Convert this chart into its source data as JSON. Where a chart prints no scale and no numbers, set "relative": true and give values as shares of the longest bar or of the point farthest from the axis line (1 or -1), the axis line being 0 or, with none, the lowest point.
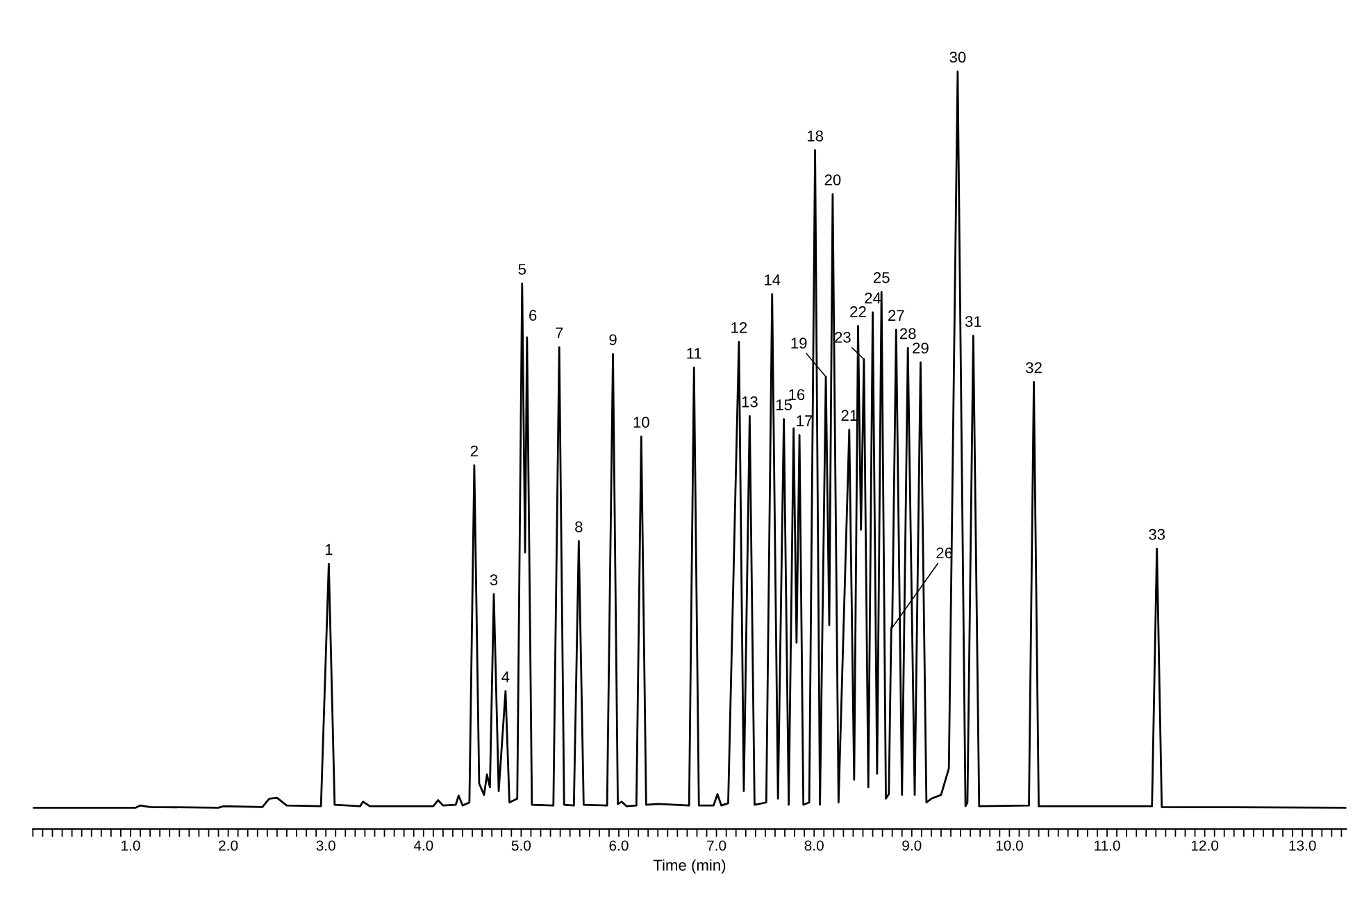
{
  "chart_data": {
    "type": "line",
    "relative": true,
    "xlabel": "Time (min)",
    "xlim": [
      0,
      13.45
    ],
    "xticks": [
      {
        "value": 0,
        "label": null
      },
      {
        "value": 0.1,
        "label": null
      },
      {
        "value": 0.2,
        "label": null
      },
      {
        "value": 0.3,
        "label": null
      },
      {
        "value": 0.4,
        "label": null
      },
      {
        "value": 0.5,
        "label": null
      },
      {
        "value": 0.6,
        "label": null
      },
      {
        "value": 0.7,
        "label": null
      },
      {
        "value": 0.8,
        "label": null
      },
      {
        "value": 0.9,
        "label": null
      },
      {
        "value": 1,
        "label": "1.0"
      },
      {
        "value": 1.1,
        "label": null
      },
      {
        "value": 1.2,
        "label": null
      },
      {
        "value": 1.3,
        "label": null
      },
      {
        "value": 1.4,
        "label": null
      },
      {
        "value": 1.5,
        "label": null
      },
      {
        "value": 1.6,
        "label": null
      },
      {
        "value": 1.7,
        "label": null
      },
      {
        "value": 1.8,
        "label": null
      },
      {
        "value": 1.9,
        "label": null
      },
      {
        "value": 2,
        "label": "2.0"
      },
      {
        "value": 2.1,
        "label": null
      },
      {
        "value": 2.2,
        "label": null
      },
      {
        "value": 2.3,
        "label": null
      },
      {
        "value": 2.4,
        "label": null
      },
      {
        "value": 2.5,
        "label": null
      },
      {
        "value": 2.6,
        "label": null
      },
      {
        "value": 2.7,
        "label": null
      },
      {
        "value": 2.8,
        "label": null
      },
      {
        "value": 2.9,
        "label": null
      },
      {
        "value": 3,
        "label": "3.0"
      },
      {
        "value": 3.1,
        "label": null
      },
      {
        "value": 3.2,
        "label": null
      },
      {
        "value": 3.3,
        "label": null
      },
      {
        "value": 3.4,
        "label": null
      },
      {
        "value": 3.5,
        "label": null
      },
      {
        "value": 3.6,
        "label": null
      },
      {
        "value": 3.7,
        "label": null
      },
      {
        "value": 3.8,
        "label": null
      },
      {
        "value": 3.9,
        "label": null
      },
      {
        "value": 4,
        "label": "4.0"
      },
      {
        "value": 4.1,
        "label": null
      },
      {
        "value": 4.2,
        "label": null
      },
      {
        "value": 4.3,
        "label": null
      },
      {
        "value": 4.4,
        "label": null
      },
      {
        "value": 4.5,
        "label": null
      },
      {
        "value": 4.6,
        "label": null
      },
      {
        "value": 4.7,
        "label": null
      },
      {
        "value": 4.8,
        "label": null
      },
      {
        "value": 4.9,
        "label": null
      },
      {
        "value": 5,
        "label": "5.0"
      },
      {
        "value": 5.1,
        "label": null
      },
      {
        "value": 5.2,
        "label": null
      },
      {
        "value": 5.3,
        "label": null
      },
      {
        "value": 5.4,
        "label": null
      },
      {
        "value": 5.5,
        "label": null
      },
      {
        "value": 5.6,
        "label": null
      },
      {
        "value": 5.7,
        "label": null
      },
      {
        "value": 5.8,
        "label": null
      },
      {
        "value": 5.9,
        "label": null
      },
      {
        "value": 6,
        "label": "6.0"
      },
      {
        "value": 6.1,
        "label": null
      },
      {
        "value": 6.2,
        "label": null
      },
      {
        "value": 6.3,
        "label": null
      },
      {
        "value": 6.4,
        "label": null
      },
      {
        "value": 6.5,
        "label": null
      },
      {
        "value": 6.6,
        "label": null
      },
      {
        "value": 6.7,
        "label": null
      },
      {
        "value": 6.8,
        "label": null
      },
      {
        "value": 6.9,
        "label": null
      },
      {
        "value": 7,
        "label": "7.0"
      },
      {
        "value": 7.1,
        "label": null
      },
      {
        "value": 7.2,
        "label": null
      },
      {
        "value": 7.3,
        "label": null
      },
      {
        "value": 7.4,
        "label": null
      },
      {
        "value": 7.5,
        "label": null
      },
      {
        "value": 7.6,
        "label": null
      },
      {
        "value": 7.7,
        "label": null
      },
      {
        "value": 7.8,
        "label": null
      },
      {
        "value": 7.9,
        "label": null
      },
      {
        "value": 8,
        "label": "8.0"
      },
      {
        "value": 8.1,
        "label": null
      },
      {
        "value": 8.2,
        "label": null
      },
      {
        "value": 8.3,
        "label": null
      },
      {
        "value": 8.4,
        "label": null
      },
      {
        "value": 8.5,
        "label": null
      },
      {
        "value": 8.6,
        "label": null
      },
      {
        "value": 8.7,
        "label": null
      },
      {
        "value": 8.8,
        "label": null
      },
      {
        "value": 8.9,
        "label": null
      },
      {
        "value": 9,
        "label": "9.0"
      },
      {
        "value": 9.1,
        "label": null
      },
      {
        "value": 9.2,
        "label": null
      },
      {
        "value": 9.3,
        "label": null
      },
      {
        "value": 9.4,
        "label": null
      },
      {
        "value": 9.5,
        "label": null
      },
      {
        "value": 9.6,
        "label": null
      },
      {
        "value": 9.7,
        "label": null
      },
      {
        "value": 9.8,
        "label": null
      },
      {
        "value": 9.9,
        "label": null
      },
      {
        "value": 10,
        "label": "10.0"
      },
      {
        "value": 10.1,
        "label": null
      },
      {
        "value": 10.2,
        "label": null
      },
      {
        "value": 10.3,
        "label": null
      },
      {
        "value": 10.4,
        "label": null
      },
      {
        "value": 10.5,
        "label": null
      },
      {
        "value": 10.6,
        "label": null
      },
      {
        "value": 10.7,
        "label": null
      },
      {
        "value": 10.8,
        "label": null
      },
      {
        "value": 10.9,
        "label": null
      },
      {
        "value": 11,
        "label": "11.0"
      },
      {
        "value": 11.1,
        "label": null
      },
      {
        "value": 11.2,
        "label": null
      },
      {
        "value": 11.3,
        "label": null
      },
      {
        "value": 11.4,
        "label": null
      },
      {
        "value": 11.5,
        "label": null
      },
      {
        "value": 11.6,
        "label": null
      },
      {
        "value": 11.7,
        "label": null
      },
      {
        "value": 11.8,
        "label": null
      },
      {
        "value": 11.9,
        "label": null
      },
      {
        "value": 12,
        "label": "12.0"
      },
      {
        "value": 12.1,
        "label": null
      },
      {
        "value": 12.2,
        "label": null
      },
      {
        "value": 12.3,
        "label": null
      },
      {
        "value": 12.4,
        "label": null
      },
      {
        "value": 12.5,
        "label": null
      },
      {
        "value": 12.6,
        "label": null
      },
      {
        "value": 12.7,
        "label": null
      },
      {
        "value": 12.8,
        "label": null
      },
      {
        "value": 12.9,
        "label": null
      },
      {
        "value": 13,
        "label": "13.0"
      },
      {
        "value": 13.1,
        "label": null
      },
      {
        "value": 13.2,
        "label": null
      },
      {
        "value": 13.3,
        "label": null
      },
      {
        "value": 13.4,
        "label": null
      }
    ],
    "grid": false,
    "marker": "none",
    "line_style": "solid",
    "series": [
      {
        "color": "#000000",
        "x": [
          0.0,
          1.05,
          1.1,
          1.2,
          1.9,
          1.95,
          2.35,
          2.42,
          2.5,
          2.6,
          2.95,
          3.03,
          3.09,
          3.35,
          3.38,
          3.45,
          4.1,
          4.15,
          4.2,
          4.33,
          4.36,
          4.4,
          4.47,
          4.52,
          4.57,
          4.62,
          4.65,
          4.68,
          4.72,
          4.77,
          4.84,
          4.88,
          4.96,
          5.01,
          5.04,
          5.06,
          5.11,
          5.33,
          5.39,
          5.44,
          5.54,
          5.59,
          5.64,
          5.88,
          5.94,
          5.99,
          6.03,
          6.08,
          6.18,
          6.23,
          6.28,
          6.4,
          6.72,
          6.77,
          6.82,
          6.97,
          7.01,
          7.05,
          7.12,
          7.23,
          7.28,
          7.34,
          7.39,
          7.51,
          7.57,
          7.63,
          7.69,
          7.74,
          7.79,
          7.82,
          7.85,
          7.89,
          7.95,
          8.01,
          8.06,
          8.12,
          8.155,
          8.19,
          8.25,
          8.36,
          8.41,
          8.45,
          8.48,
          8.51,
          8.555,
          8.6,
          8.645,
          8.69,
          8.735,
          8.765,
          8.79,
          8.8,
          8.84,
          8.9,
          8.96,
          9.03,
          9.09,
          9.15,
          9.2,
          9.3,
          9.38,
          9.47,
          9.55,
          9.57,
          9.63,
          9.69,
          10.2,
          10.25,
          10.3,
          11.1,
          11.46,
          11.51,
          11.56,
          13.45
        ],
        "values": [
          0.028,
          0.028,
          0.031,
          0.029,
          0.028,
          0.03,
          0.029,
          0.04,
          0.041,
          0.031,
          0.03,
          0.35,
          0.032,
          0.03,
          0.036,
          0.03,
          0.03,
          0.038,
          0.031,
          0.032,
          0.044,
          0.031,
          0.035,
          0.48,
          0.06,
          0.045,
          0.072,
          0.055,
          0.31,
          0.05,
          0.182,
          0.035,
          0.04,
          0.72,
          0.365,
          0.649,
          0.032,
          0.031,
          0.636,
          0.032,
          0.031,
          0.38,
          0.032,
          0.031,
          0.627,
          0.033,
          0.036,
          0.03,
          0.031,
          0.518,
          0.032,
          0.033,
          0.031,
          0.609,
          0.031,
          0.031,
          0.046,
          0.031,
          0.034,
          0.643,
          0.05,
          0.545,
          0.032,
          0.035,
          0.706,
          0.04,
          0.541,
          0.032,
          0.529,
          0.246,
          0.52,
          0.032,
          0.035,
          0.896,
          0.032,
          0.597,
          0.269,
          0.838,
          0.035,
          0.527,
          0.065,
          0.664,
          0.395,
          0.62,
          0.055,
          0.682,
          0.073,
          0.709,
          0.04,
          0.046,
          0.264,
          0.27,
          0.659,
          0.045,
          0.635,
          0.045,
          0.616,
          0.035,
          0.04,
          0.045,
          0.08,
          1.0,
          0.03,
          0.035,
          0.651,
          0.03,
          0.031,
          0.59,
          0.03,
          0.03,
          0.03,
          0.37,
          0.029,
          0.028
        ]
      }
    ],
    "annotations": [
      {
        "text": "1",
        "x": 3.03,
        "y": 0.35
      },
      {
        "text": "2",
        "x": 4.52,
        "y": 0.48
      },
      {
        "text": "3",
        "x": 4.72,
        "y": 0.31
      },
      {
        "text": "4",
        "x": 4.84,
        "y": 0.182
      },
      {
        "text": "5",
        "x": 5.01,
        "y": 0.72
      },
      {
        "text": "6",
        "x": 5.06,
        "y": 0.649
      },
      {
        "text": "7",
        "x": 5.39,
        "y": 0.636
      },
      {
        "text": "8",
        "x": 5.59,
        "y": 0.38
      },
      {
        "text": "9",
        "x": 5.94,
        "y": 0.627
      },
      {
        "text": "10",
        "x": 6.23,
        "y": 0.518
      },
      {
        "text": "11",
        "x": 6.77,
        "y": 0.609
      },
      {
        "text": "12",
        "x": 7.23,
        "y": 0.643
      },
      {
        "text": "13",
        "x": 7.34,
        "y": 0.545
      },
      {
        "text": "14",
        "x": 7.57,
        "y": 0.706
      },
      {
        "text": "15",
        "x": 7.69,
        "y": 0.541
      },
      {
        "text": "16",
        "x": 7.79,
        "y": 0.529
      },
      {
        "text": "17",
        "x": 7.85,
        "y": 0.52
      },
      {
        "text": "18",
        "x": 8.01,
        "y": 0.896
      },
      {
        "text": "19",
        "x": 8.12,
        "y": 0.597
      },
      {
        "text": "20",
        "x": 8.19,
        "y": 0.838
      },
      {
        "text": "21",
        "x": 8.36,
        "y": 0.527
      },
      {
        "text": "22",
        "x": 8.45,
        "y": 0.664
      },
      {
        "text": "23",
        "x": 8.51,
        "y": 0.62
      },
      {
        "text": "24",
        "x": 8.6,
        "y": 0.682
      },
      {
        "text": "25",
        "x": 8.69,
        "y": 0.709
      },
      {
        "text": "26",
        "x": 8.79,
        "y": 0.264
      },
      {
        "text": "27",
        "x": 8.84,
        "y": 0.659
      },
      {
        "text": "28",
        "x": 8.96,
        "y": 0.635
      },
      {
        "text": "29",
        "x": 9.09,
        "y": 0.616
      },
      {
        "text": "30",
        "x": 9.47,
        "y": 1.0
      },
      {
        "text": "31",
        "x": 9.63,
        "y": 0.651
      },
      {
        "text": "32",
        "x": 10.25,
        "y": 0.59
      },
      {
        "text": "33",
        "x": 11.51,
        "y": 0.37
      }
    ]
  }
}
